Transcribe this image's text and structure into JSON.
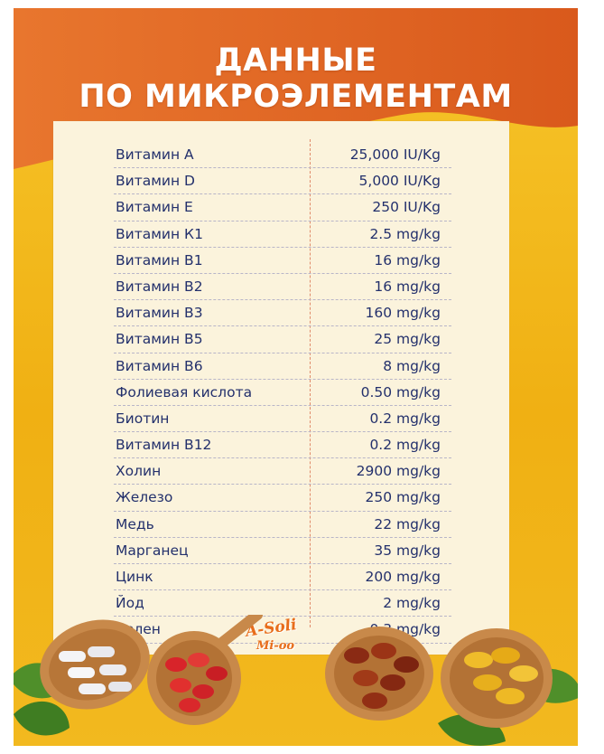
{
  "header": {
    "title_line1": "ДАННЫЕ",
    "title_line2": "ПО МИКРОЭЛЕМЕНТАМ"
  },
  "colors": {
    "header_orange": "#e5702a",
    "background_yellow": "#f3b51d",
    "card": "#fbf3dc",
    "text": "#23306c",
    "divider": "#e08a6a"
  },
  "nutrients": [
    {
      "name": "Витамин А",
      "value": "25,000 IU/Kg"
    },
    {
      "name": "Витамин D",
      "value": "5,000 IU/Kg"
    },
    {
      "name": "Витамин Е",
      "value": "250 IU/Kg"
    },
    {
      "name": "Витамин К1",
      "value": "2.5 mg/kg"
    },
    {
      "name": "Витамин В1",
      "value": "16 mg/kg"
    },
    {
      "name": "Витамин В2",
      "value": "16 mg/kg"
    },
    {
      "name": "Витамин В3",
      "value": "160 mg/kg"
    },
    {
      "name": "Витамин В5",
      "value": "25 mg/kg"
    },
    {
      "name": "Витамин В6",
      "value": "8 mg/kg"
    },
    {
      "name": "Фолиевая кислота",
      "value": "0.50 mg/kg"
    },
    {
      "name": "Биотин",
      "value": "0.2 mg/kg"
    },
    {
      "name": "Витамин В12",
      "value": "0.2 mg/kg"
    },
    {
      "name": "Холин",
      "value": "2900 mg/kg"
    },
    {
      "name": "Железо",
      "value": "250 mg/kg"
    },
    {
      "name": "Медь",
      "value": "22 mg/kg"
    },
    {
      "name": "Марганец",
      "value": "35 mg/kg"
    },
    {
      "name": "Цинк",
      "value": "200 mg/kg"
    },
    {
      "name": "Йод",
      "value": "2 mg/kg"
    },
    {
      "name": "Селен",
      "value": "0.3 mg/kg"
    }
  ],
  "logo": {
    "line1": "A-Soli",
    "line2": "Mi-oo"
  },
  "decorations": [
    "leaf-icon",
    "spoon-white-capsules-icon",
    "spoon-red-softgels-icon",
    "spoon-brown-softgels-icon",
    "spoon-yellow-softgels-icon"
  ]
}
